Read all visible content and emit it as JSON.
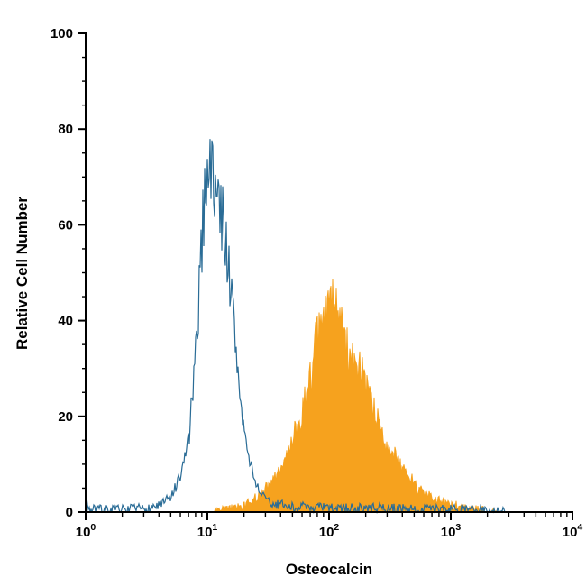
{
  "chart_data": {
    "type": "area",
    "title": "",
    "xlabel": "Osteocalcin",
    "ylabel": "Relative Cell Number",
    "x_scale": "log10",
    "x_range_exponents": [
      0,
      4
    ],
    "ylim": [
      0,
      100
    ],
    "x_tick_exponents": [
      0,
      1,
      2,
      3,
      4
    ],
    "x_tick_base": "10",
    "y_ticks": [
      0,
      20,
      40,
      60,
      80,
      100
    ],
    "y_minor_step": 5,
    "grid": false,
    "legend": "none",
    "axis_color": "#000000",
    "background_color": "#ffffff",
    "bins": 540,
    "series": [
      {
        "name": "filled-orange-histogram",
        "style": "filled",
        "color": "#F6A21E",
        "peak": {
          "x": 100,
          "y": 51
        },
        "noise_rel": 0.16,
        "noise_abs": 1.0,
        "seed": 42,
        "envelope_logx_y": [
          [
            1.05,
            0
          ],
          [
            1.15,
            0.4
          ],
          [
            1.25,
            1
          ],
          [
            1.35,
            2
          ],
          [
            1.45,
            4
          ],
          [
            1.55,
            7
          ],
          [
            1.62,
            10
          ],
          [
            1.7,
            15
          ],
          [
            1.78,
            21
          ],
          [
            1.85,
            29
          ],
          [
            1.92,
            37
          ],
          [
            1.97,
            43
          ],
          [
            2.02,
            44
          ],
          [
            2.07,
            40
          ],
          [
            2.13,
            36
          ],
          [
            2.2,
            32
          ],
          [
            2.28,
            27
          ],
          [
            2.35,
            22
          ],
          [
            2.43,
            17
          ],
          [
            2.5,
            13
          ],
          [
            2.58,
            10
          ],
          [
            2.66,
            7
          ],
          [
            2.74,
            5
          ],
          [
            2.82,
            3.5
          ],
          [
            2.9,
            2.3
          ],
          [
            3.0,
            1.5
          ],
          [
            3.1,
            0.9
          ],
          [
            3.2,
            0.5
          ],
          [
            3.3,
            0.2
          ],
          [
            3.38,
            0
          ],
          [
            4,
            0
          ]
        ]
      },
      {
        "name": "open-blue-histogram",
        "style": "outline",
        "color": "#2A6C96",
        "peak": {
          "x": 10,
          "y": 88
        },
        "noise_rel": 0.14,
        "noise_abs": 1.1,
        "seed": 7,
        "envelope_logx_y": [
          [
            0,
            3
          ],
          [
            0.03,
            0.5
          ],
          [
            0.3,
            0.4
          ],
          [
            0.5,
            0.7
          ],
          [
            0.62,
            1.5
          ],
          [
            0.7,
            3
          ],
          [
            0.78,
            7
          ],
          [
            0.85,
            16
          ],
          [
            0.9,
            30
          ],
          [
            0.95,
            55
          ],
          [
            1.0,
            75
          ],
          [
            1.04,
            70
          ],
          [
            1.1,
            64
          ],
          [
            1.15,
            58
          ],
          [
            1.2,
            44
          ],
          [
            1.27,
            24
          ],
          [
            1.33,
            12
          ],
          [
            1.42,
            4.5
          ],
          [
            1.5,
            2
          ],
          [
            1.7,
            1
          ],
          [
            2.0,
            0.8
          ],
          [
            2.4,
            0.7
          ],
          [
            2.8,
            0.6
          ],
          [
            3.1,
            0.4
          ],
          [
            3.35,
            0.2
          ],
          [
            3.45,
            0
          ],
          [
            4,
            0
          ]
        ]
      }
    ]
  }
}
